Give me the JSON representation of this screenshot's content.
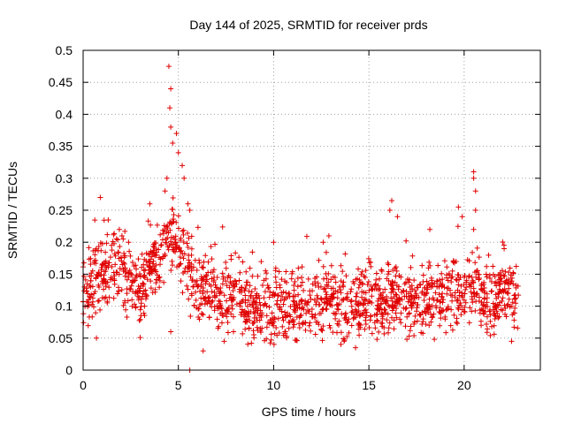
{
  "chart_data": {
    "type": "scatter",
    "title": "Day 144 of 2025, SRMTID for receiver prds",
    "xlabel": "GPS time / hours",
    "ylabel": "SRMTID / TECUs",
    "xlim": [
      0,
      24
    ],
    "ylim": [
      0,
      0.5
    ],
    "xticks": [
      0,
      5,
      10,
      15,
      20
    ],
    "xtick_labels": [
      "0",
      "5",
      "10",
      "15",
      "20"
    ],
    "yticks": [
      0,
      0.05,
      0.1,
      0.15,
      0.2,
      0.25,
      0.3,
      0.35,
      0.4,
      0.45,
      0.5
    ],
    "ytick_labels": [
      "0",
      "0.05",
      "0.1",
      "0.15",
      "0.2",
      "0.25",
      "0.3",
      "0.35",
      "0.4",
      "0.45",
      "0.5"
    ],
    "grid": true,
    "marker": "+",
    "color": "#e00000",
    "series": [
      {
        "name": "SRMTID",
        "profile": [
          [
            0.0,
            0.125
          ],
          [
            0.5,
            0.13
          ],
          [
            1.0,
            0.15
          ],
          [
            1.5,
            0.16
          ],
          [
            2.0,
            0.16
          ],
          [
            2.5,
            0.13
          ],
          [
            3.0,
            0.12
          ],
          [
            3.5,
            0.16
          ],
          [
            4.0,
            0.18
          ],
          [
            4.5,
            0.21
          ],
          [
            5.0,
            0.2
          ],
          [
            5.5,
            0.15
          ],
          [
            6.0,
            0.13
          ],
          [
            7.0,
            0.12
          ],
          [
            8.0,
            0.11
          ],
          [
            9.0,
            0.1
          ],
          [
            10.0,
            0.105
          ],
          [
            11.0,
            0.1
          ],
          [
            12.0,
            0.105
          ],
          [
            13.0,
            0.11
          ],
          [
            14.0,
            0.1
          ],
          [
            15.0,
            0.105
          ],
          [
            16.0,
            0.11
          ],
          [
            16.5,
            0.12
          ],
          [
            17.0,
            0.105
          ],
          [
            18.0,
            0.11
          ],
          [
            19.0,
            0.11
          ],
          [
            20.0,
            0.13
          ],
          [
            20.5,
            0.14
          ],
          [
            21.0,
            0.11
          ],
          [
            22.0,
            0.12
          ],
          [
            22.8,
            0.1
          ]
        ],
        "spikes": [
          {
            "x": 0.9,
            "y": 0.27
          },
          {
            "x": 1.9,
            "y": 0.22
          },
          {
            "x": 3.5,
            "y": 0.26
          },
          {
            "x": 4.5,
            "y": 0.475
          },
          {
            "x": 4.6,
            "y": 0.44
          },
          {
            "x": 4.55,
            "y": 0.41
          },
          {
            "x": 4.6,
            "y": 0.38
          },
          {
            "x": 4.7,
            "y": 0.355
          },
          {
            "x": 4.9,
            "y": 0.37
          },
          {
            "x": 5.0,
            "y": 0.34
          },
          {
            "x": 5.2,
            "y": 0.32
          },
          {
            "x": 5.3,
            "y": 0.3
          },
          {
            "x": 4.4,
            "y": 0.3
          },
          {
            "x": 4.3,
            "y": 0.28
          },
          {
            "x": 5.5,
            "y": 0.26
          },
          {
            "x": 5.6,
            "y": 0.25
          },
          {
            "x": 10.0,
            "y": 0.2
          },
          {
            "x": 12.6,
            "y": 0.2
          },
          {
            "x": 12.9,
            "y": 0.21
          },
          {
            "x": 16.2,
            "y": 0.265
          },
          {
            "x": 16.1,
            "y": 0.25
          },
          {
            "x": 16.5,
            "y": 0.24
          },
          {
            "x": 18.2,
            "y": 0.22
          },
          {
            "x": 19.7,
            "y": 0.255
          },
          {
            "x": 19.9,
            "y": 0.24
          },
          {
            "x": 20.5,
            "y": 0.31
          },
          {
            "x": 20.5,
            "y": 0.3
          },
          {
            "x": 20.6,
            "y": 0.28
          },
          {
            "x": 20.6,
            "y": 0.25
          },
          {
            "x": 20.5,
            "y": 0.22
          },
          {
            "x": 22.1,
            "y": 0.19
          }
        ],
        "lows": [
          {
            "x": 5.6,
            "y": 0.0
          },
          {
            "x": 6.3,
            "y": 0.03
          },
          {
            "x": 0.7,
            "y": 0.05
          },
          {
            "x": 14.3,
            "y": 0.035
          },
          {
            "x": 7.4,
            "y": 0.045
          },
          {
            "x": 4.6,
            "y": 0.06
          }
        ]
      }
    ]
  }
}
